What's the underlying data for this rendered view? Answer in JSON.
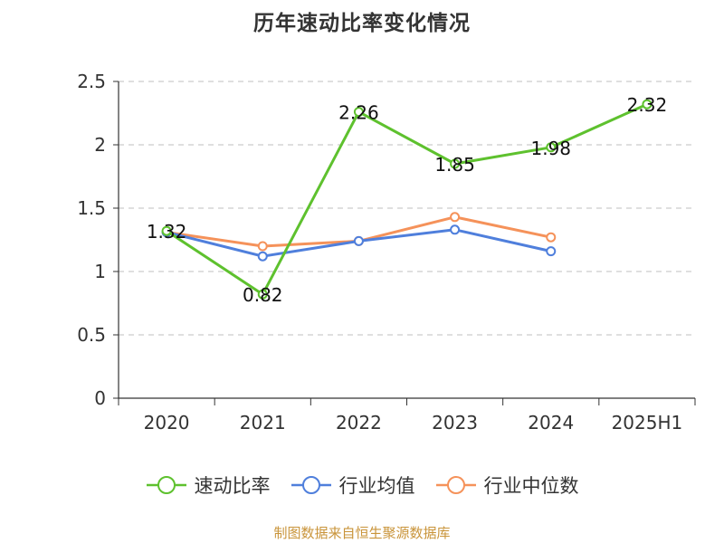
{
  "title": "历年速动比率变化情况",
  "source_note": "制图数据来自恒生聚源数据库",
  "colors": {
    "axis": "#333333",
    "grid": "#cccccc",
    "text": "#333333",
    "source": "#c9943a"
  },
  "chart_data": {
    "type": "line",
    "title": "历年速动比率变化情况",
    "xlabel": "",
    "ylabel": "",
    "categories": [
      "2020",
      "2021",
      "2022",
      "2023",
      "2024",
      "2025H1"
    ],
    "ylim": [
      0,
      2.5
    ],
    "yticks": [
      "0",
      "0.5",
      "1",
      "1.5",
      "2",
      "2.5"
    ],
    "grid": true,
    "legend_position": "bottom",
    "series": [
      {
        "name": "速动比率",
        "color": "#5ec12e",
        "values": [
          1.32,
          0.82,
          2.26,
          1.85,
          1.98,
          2.32
        ],
        "labels": [
          "1.32",
          "0.82",
          "2.26",
          "1.85",
          "1.98",
          "2.32"
        ],
        "show_labels": true
      },
      {
        "name": "行业均值",
        "color": "#4f7fdc",
        "values": [
          1.31,
          1.12,
          1.24,
          1.33,
          1.16,
          null
        ],
        "show_labels": false
      },
      {
        "name": "行业中位数",
        "color": "#f5925a",
        "values": [
          1.31,
          1.2,
          1.24,
          1.43,
          1.27,
          null
        ],
        "show_labels": false
      }
    ]
  }
}
